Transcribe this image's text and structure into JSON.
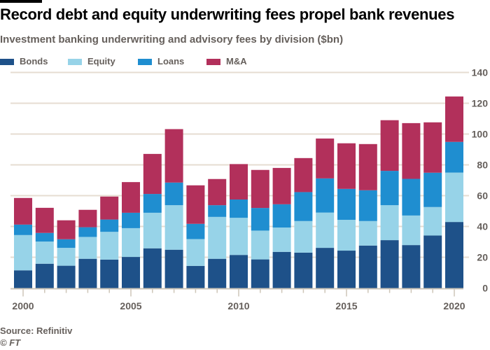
{
  "header": {
    "title": "Record debt and equity underwriting fees propel bank revenues",
    "subtitle": "Investment banking underwriting and advisory fees by division ($bn)"
  },
  "legend": [
    {
      "name": "Bonds",
      "color": "#1e5189"
    },
    {
      "name": "Equity",
      "color": "#97d3e8"
    },
    {
      "name": "Loans",
      "color": "#1f8ed0"
    },
    {
      "name": "M&A",
      "color": "#b2305b"
    }
  ],
  "footer": {
    "source": "Source: Refinitiv",
    "credit": "© FT"
  },
  "chart_data": {
    "type": "bar",
    "stacked": true,
    "title": "Record debt and equity underwriting fees propel bank revenues",
    "subtitle": "Investment banking underwriting and advisory fees by division ($bn)",
    "xlabel": "",
    "ylabel": "",
    "ylim": [
      0,
      140
    ],
    "yticks": [
      0,
      20,
      40,
      60,
      80,
      100,
      120,
      140
    ],
    "yaxis_side": "right",
    "grid": true,
    "legend_position": "top-left",
    "categories": [
      2000,
      2001,
      2002,
      2003,
      2004,
      2005,
      2006,
      2007,
      2008,
      2009,
      2010,
      2011,
      2012,
      2013,
      2014,
      2015,
      2016,
      2017,
      2018,
      2019,
      2020
    ],
    "xtick_labels": [
      {
        "year": 2000,
        "label": "2000"
      },
      {
        "year": 2005,
        "label": "2005"
      },
      {
        "year": 2010,
        "label": "2010"
      },
      {
        "year": 2015,
        "label": "2015"
      },
      {
        "year": 2020,
        "label": "2020"
      }
    ],
    "series": [
      {
        "name": "Bonds",
        "color": "#1e5189",
        "values": [
          11.5,
          15.8,
          14.5,
          19.0,
          18.5,
          20.2,
          25.8,
          24.9,
          14.4,
          19.0,
          21.5,
          18.6,
          23.5,
          23.0,
          26.1,
          24.3,
          27.6,
          31.1,
          27.9,
          34.1,
          42.9
        ]
      },
      {
        "name": "Equity",
        "color": "#97d3e8",
        "values": [
          22.9,
          14.4,
          11.6,
          14.2,
          18.0,
          18.7,
          23.1,
          28.9,
          17.4,
          27.2,
          24.1,
          18.7,
          15.8,
          20.5,
          22.9,
          20.0,
          15.9,
          22.7,
          19.2,
          18.5,
          32.1
        ]
      },
      {
        "name": "Loans",
        "color": "#1f8ed0",
        "values": [
          6.8,
          5.6,
          5.6,
          6.3,
          8.0,
          10.0,
          12.2,
          14.7,
          9.9,
          7.6,
          11.9,
          14.7,
          15.1,
          18.8,
          22.2,
          20.1,
          20.0,
          22.3,
          23.8,
          22.3,
          19.9
        ]
      },
      {
        "name": "M&A",
        "color": "#b2305b",
        "values": [
          17.3,
          16.3,
          12.3,
          11.3,
          14.9,
          19.9,
          26.0,
          34.7,
          25.0,
          17.0,
          23.0,
          24.7,
          23.6,
          22.1,
          25.9,
          29.6,
          30.0,
          32.9,
          36.2,
          32.7,
          29.5
        ]
      }
    ]
  }
}
